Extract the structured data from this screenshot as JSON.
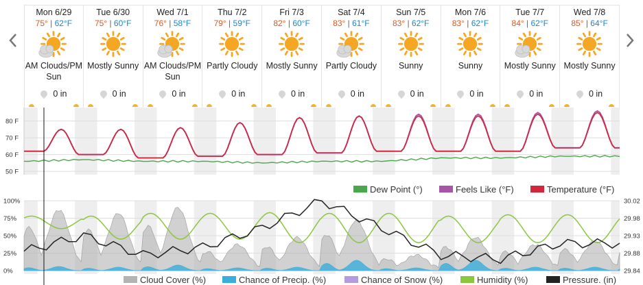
{
  "nav": {
    "prev_icon": "chevron-left-icon",
    "next_icon": "chevron-right-icon"
  },
  "days": [
    {
      "date": "Mon 6/29",
      "hi": "75°",
      "lo": "62°F",
      "cond": "AM Clouds/PM Sun",
      "icon": "partly-cloudy-icon",
      "precip": "0 in"
    },
    {
      "date": "Tue 6/30",
      "hi": "75°",
      "lo": "60°F",
      "cond": "Mostly Sunny",
      "icon": "sunny-icon",
      "precip": "0 in"
    },
    {
      "date": "Wed 7/1",
      "hi": "76°",
      "lo": "58°F",
      "cond": "AM Clouds/PM Sun",
      "icon": "partly-cloudy-icon",
      "precip": "0 in"
    },
    {
      "date": "Thu 7/2",
      "hi": "79°",
      "lo": "59°F",
      "cond": "Partly Cloudy",
      "icon": "sunny-icon",
      "precip": "0 in"
    },
    {
      "date": "Fri 7/3",
      "hi": "82°",
      "lo": "60°F",
      "cond": "Mostly Sunny",
      "icon": "sunny-icon",
      "precip": "0 in"
    },
    {
      "date": "Sat 7/4",
      "hi": "83°",
      "lo": "61°F",
      "cond": "Partly Cloudy",
      "icon": "partly-cloudy-icon",
      "precip": "0 in"
    },
    {
      "date": "Sun 7/5",
      "hi": "83°",
      "lo": "62°F",
      "cond": "Sunny",
      "icon": "sunny-icon",
      "precip": "0 in"
    },
    {
      "date": "Mon 7/6",
      "hi": "83°",
      "lo": "62°F",
      "cond": "Sunny",
      "icon": "sunny-icon",
      "precip": "0 in"
    },
    {
      "date": "Tue 7/7",
      "hi": "84°",
      "lo": "62°F",
      "cond": "Mostly Sunny",
      "icon": "partly-cloudy-icon",
      "precip": "0 in"
    },
    {
      "date": "Wed 7/8",
      "hi": "85°",
      "lo": "64°F",
      "cond": "Mostly Sunny",
      "icon": "sunny-icon",
      "precip": "0 in"
    }
  ],
  "colors": {
    "temperature": "#d0283a",
    "feels_like": "#a855a8",
    "dew_point": "#4ba84a",
    "cloud_cover": "#b3b3b3",
    "precip": "#3aaedb",
    "snow": "#b39be0",
    "humidity": "#8cc63f",
    "pressure": "#222222",
    "night_shade": "#eeeeee",
    "hi_temp": "#e0561f",
    "lo_temp": "#1b87c9"
  },
  "chart_data": [
    {
      "type": "line",
      "x": "hourly, Mon 6/29 – Wed 7/8",
      "y_ticks": [
        "80 F",
        "70 F",
        "60 F",
        "50 F"
      ],
      "ylim": [
        48,
        88
      ],
      "series": [
        {
          "name": "Temperature (°F)",
          "highs": [
            75,
            75,
            76,
            79,
            82,
            83,
            83,
            83,
            84,
            85
          ],
          "lows": [
            62,
            60,
            58,
            59,
            60,
            61,
            62,
            62,
            62,
            64
          ]
        },
        {
          "name": "Feels Like (°F)",
          "highs": [
            75,
            75,
            76,
            79,
            82,
            83,
            84,
            84,
            85,
            86
          ],
          "lows": [
            62,
            60,
            58,
            59,
            60,
            61,
            62,
            62,
            62,
            64
          ]
        },
        {
          "name": "Dew Point (°)",
          "values": [
            56,
            57,
            56,
            56,
            55,
            56,
            56,
            58,
            58,
            59
          ]
        }
      ],
      "legend": [
        "Dew Point (°)",
        "Feels Like (°F)",
        "Temperature (°F)"
      ],
      "legend_position": "bottom-right",
      "grid": true
    },
    {
      "type": "area",
      "x": "hourly, Mon 6/29 – Wed 7/8",
      "y_ticks_left": [
        "100%",
        "75%",
        "50%",
        "25%",
        "0%"
      ],
      "y_ticks_right": [
        "30.02",
        "29.98",
        "29.93",
        "29.88",
        "29.84"
      ],
      "ylim_left": [
        0,
        100
      ],
      "ylim_right": [
        29.84,
        30.02
      ],
      "series": [
        {
          "name": "Cloud Cover (%)",
          "daily_peak": [
            85,
            80,
            88,
            35,
            45,
            70,
            20,
            45,
            35,
            40
          ]
        },
        {
          "name": "Chance of Precip. (%)",
          "daily_peak": [
            6,
            5,
            8,
            4,
            5,
            15,
            4,
            15,
            5,
            5
          ]
        },
        {
          "name": "Chance of Snow (%)",
          "daily_peak": [
            0,
            0,
            0,
            0,
            0,
            0,
            0,
            0,
            0,
            0
          ]
        },
        {
          "name": "Humidity (%)",
          "highs": [
            78,
            78,
            82,
            82,
            83,
            82,
            82,
            78,
            80,
            80
          ],
          "lows": [
            60,
            45,
            45,
            45,
            40,
            40,
            40,
            40,
            40,
            40
          ]
        },
        {
          "name": "Pressure. (in)",
          "values": [
            29.89,
            29.93,
            29.88,
            29.9,
            29.95,
            30.02,
            29.95,
            29.88,
            29.87,
            29.91
          ]
        }
      ],
      "legend": [
        "Cloud Cover (%)",
        "Chance of Precip. (%)",
        "Chance of Snow (%)",
        "Humidity (%)",
        "Pressure. (in)"
      ],
      "legend_position": "bottom",
      "grid": true
    }
  ]
}
